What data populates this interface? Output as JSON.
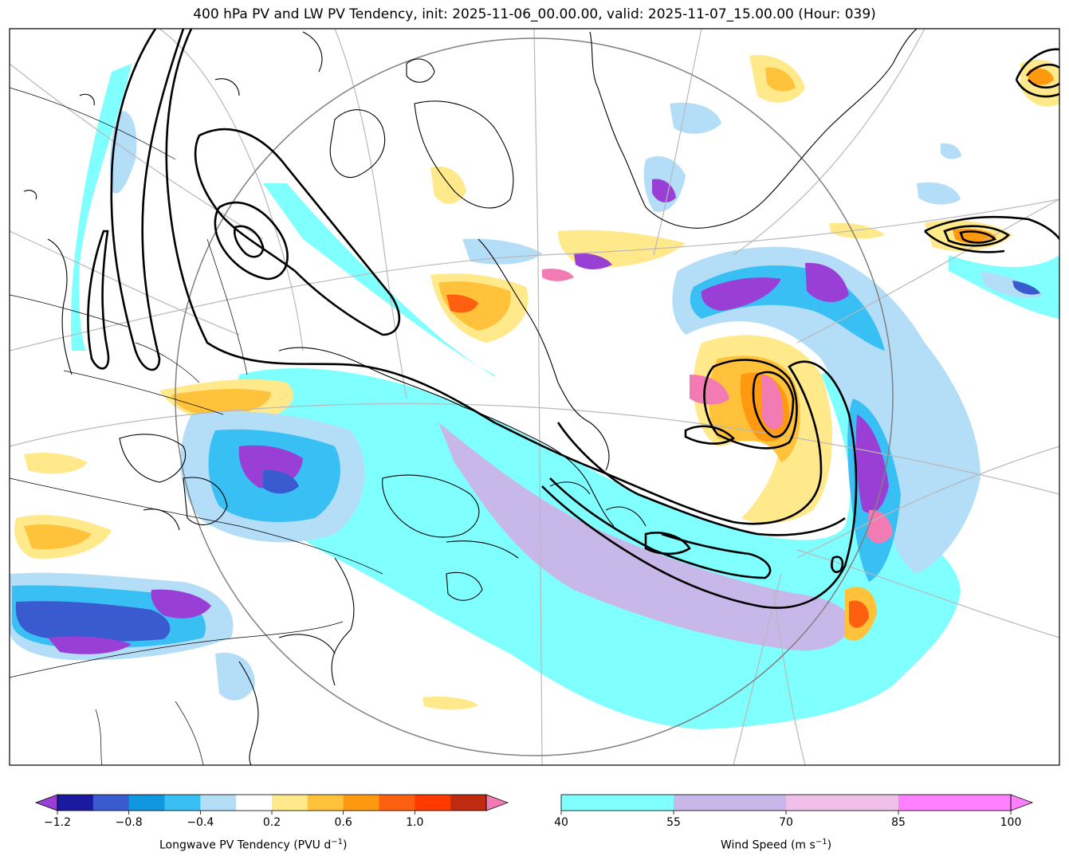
{
  "title": "400 hPa PV and LW PV Tendency, init: 2025-11-06_00.00.00, valid: 2025-11-07_15.00.00 (Hour: 039)",
  "colorbars": {
    "pv_tendency": {
      "label": "Longwave PV Tendency (PVU d",
      "label_sup": "−1",
      "label_end": ")",
      "levels": [
        -1.2,
        -1.0,
        -0.8,
        -0.6,
        -0.4,
        -0.2,
        0.2,
        0.4,
        0.6,
        0.8,
        1.0,
        1.2
      ],
      "tick_labels": [
        "−1.2",
        "−0.8",
        "−0.4",
        "0.2",
        "0.6",
        "1.0"
      ],
      "under_color": "#9a3fd6",
      "over_color": "#f27bb3",
      "colors": [
        "#1a1aa0",
        "#3a5ad0",
        "#1196e0",
        "#38c0f5",
        "#b4ddf8",
        "#ffffff",
        "#ffe98a",
        "#ffc23a",
        "#ff9a10",
        "#ff6010",
        "#ff3a00",
        "#c02a10"
      ]
    },
    "wind_speed": {
      "label": "Wind Speed (m s",
      "label_sup": "−1",
      "label_end": ")",
      "levels": [
        40,
        55,
        70,
        85,
        100
      ],
      "tick_labels": [
        "40",
        "55",
        "70",
        "85",
        "100"
      ],
      "colors": [
        "#80ffff",
        "#c8b8ea",
        "#f0c0e8",
        "#ff80ff"
      ]
    }
  }
}
